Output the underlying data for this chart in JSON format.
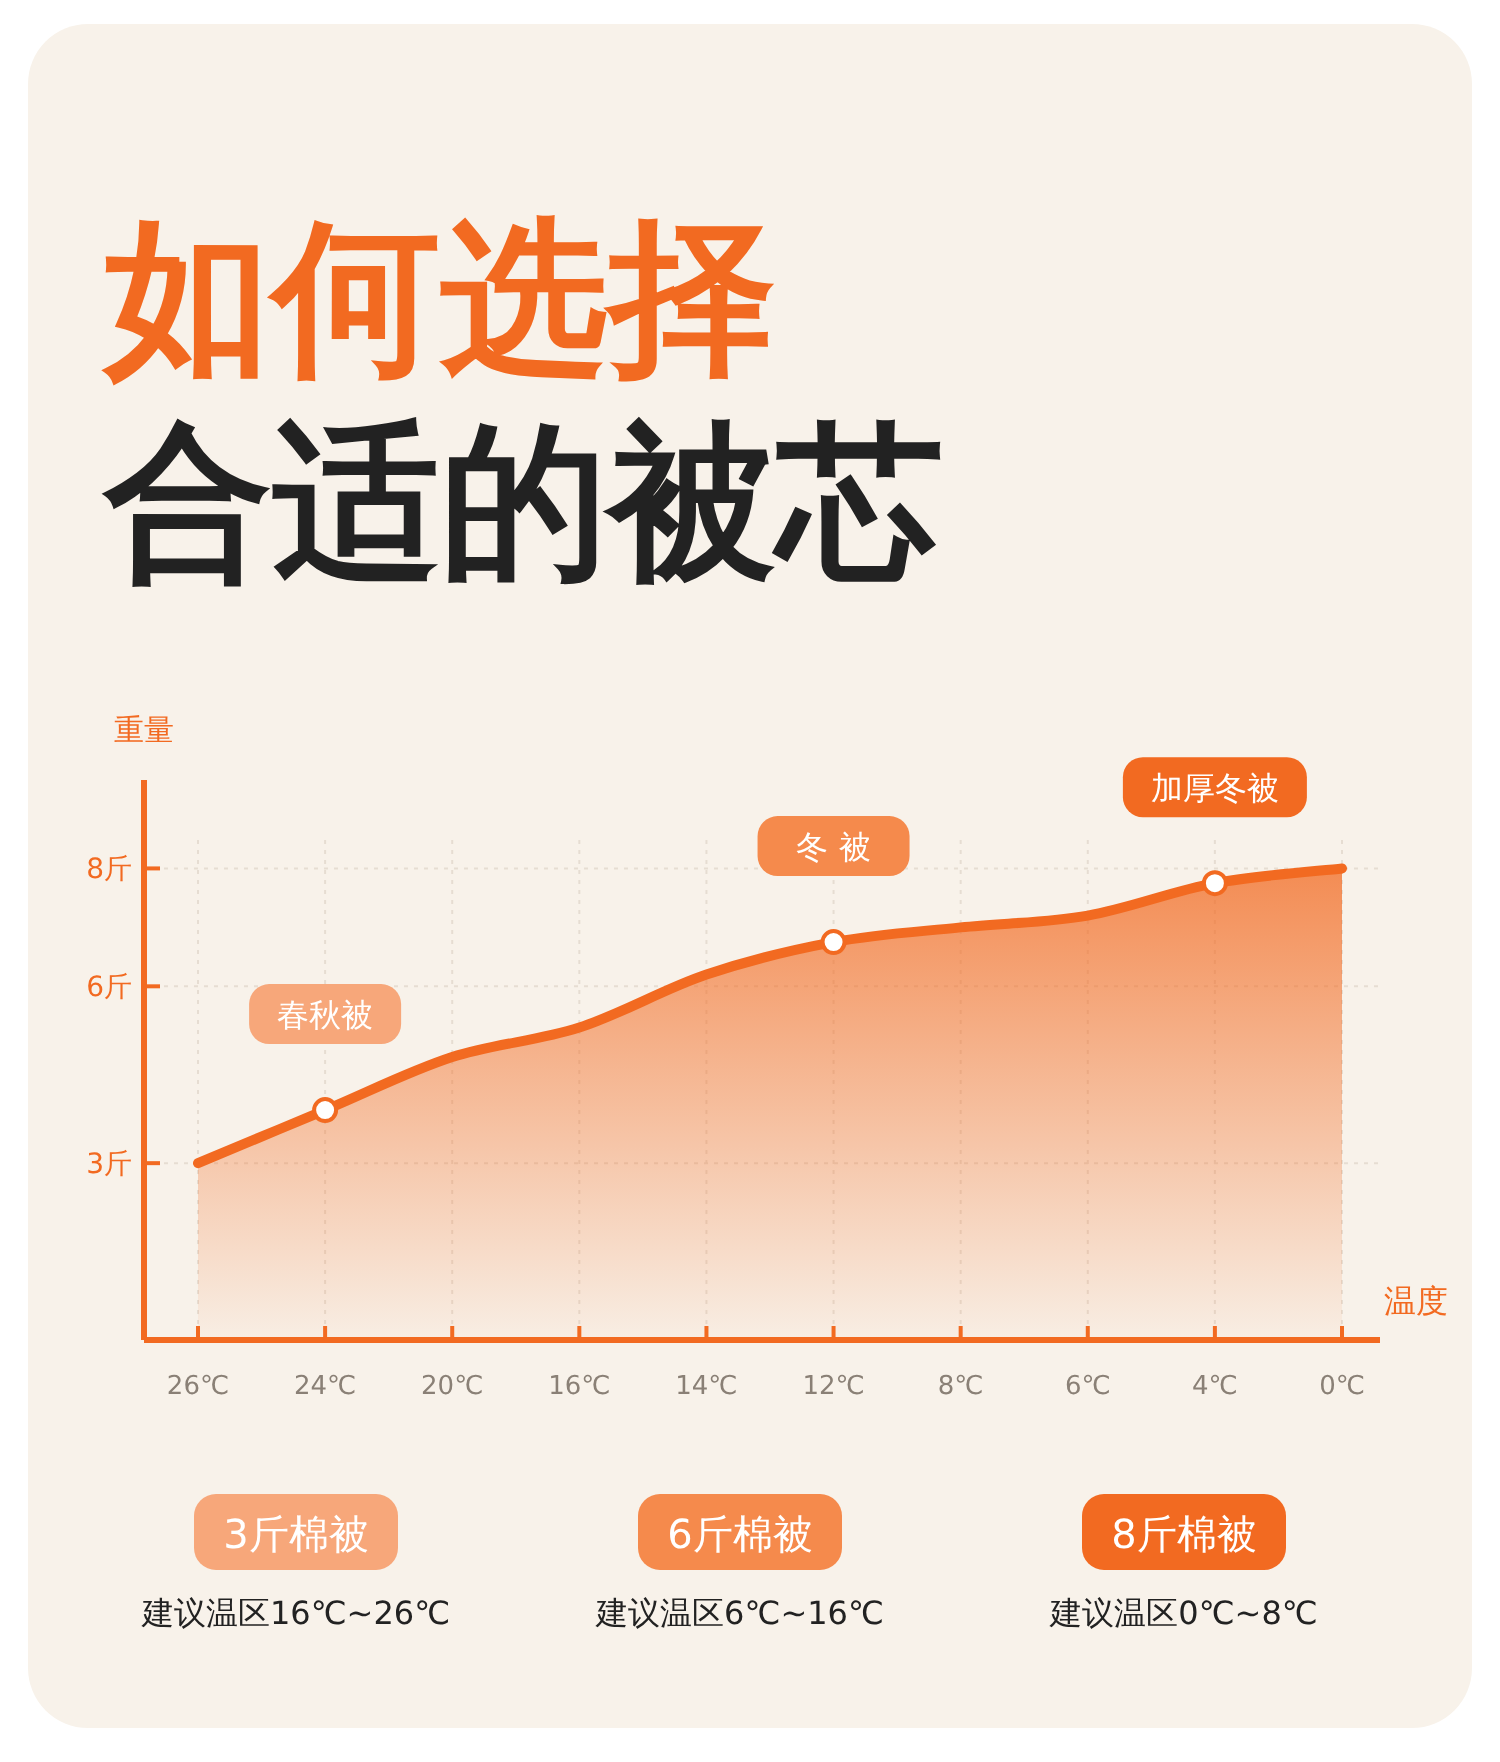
{
  "chart_data": {
    "type": "area",
    "title": "如何选择",
    "subtitle": "合适的被芯",
    "xlabel": "温度",
    "ylabel": "重量",
    "categories": [
      "26℃",
      "24℃",
      "20℃",
      "16℃",
      "14℃",
      "12℃",
      "8℃",
      "6℃",
      "4℃",
      "0℃"
    ],
    "series": [
      {
        "type": "area",
        "color": "#f26a21",
        "values": [
          3.0,
          3.9,
          4.8,
          5.3,
          6.2,
          6.75,
          7.0,
          7.2,
          7.75,
          8.0
        ]
      },
      {
        "type": "scatter",
        "color": "#f26a21",
        "marker": "circle",
        "x": [
          "24℃",
          "12℃",
          "4℃"
        ],
        "values": [
          3.9,
          6.75,
          7.75
        ]
      }
    ],
    "ylim": [
      0,
      9.5
    ],
    "yticks": [
      {
        "value": 3,
        "label": "3斤"
      },
      {
        "value": 6,
        "label": "6斤"
      },
      {
        "value": 8,
        "label": "8斤"
      }
    ],
    "grid": true,
    "annotations": [
      {
        "text": "春秋被",
        "x": "24℃",
        "y": 3.9
      },
      {
        "text": "冬 被",
        "x": "12℃",
        "y": 6.75
      },
      {
        "text": "加厚冬被",
        "x": "4℃",
        "y": 7.75
      },
      "3斤棉被",
      "建议温区16℃~26℃",
      "6斤棉被",
      "建议温区6℃~16℃",
      "8斤棉被",
      "建议温区0℃~8℃"
    ]
  }
}
